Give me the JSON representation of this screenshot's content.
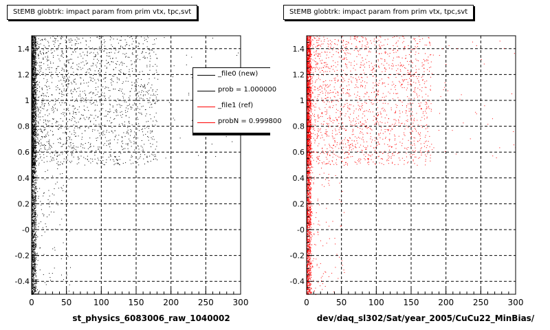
{
  "chart_data": [
    {
      "type": "scatter",
      "title": "StEMB globtrk: impact param from prim vtx, tpc,svt",
      "xlabel": "st_physics_6083006_raw_1040002",
      "ylabel": "",
      "xlim": [
        0,
        300
      ],
      "ylim": [
        -0.5,
        1.5
      ],
      "xticks": [
        "0",
        "50",
        "100",
        "150",
        "200",
        "250",
        "300"
      ],
      "yticks": [
        "-0.4",
        "-0.2",
        "-0",
        "0.2",
        "0.4",
        "0.6",
        "0.8",
        "1",
        "1.2",
        "1.4"
      ],
      "grid": true,
      "color": "#000000",
      "distribution": {
        "dense_band_x": [
          0,
          6
        ],
        "sparse_cluster_x": [
          0,
          180
        ],
        "sparse_cluster_y": [
          0.5,
          1.5
        ]
      }
    },
    {
      "type": "scatter",
      "title": "StEMB globtrk: impact param from prim vtx, tpc,svt",
      "xlabel": "dev/daq_sl302/Sat/year_2005/CuCu22_MinBias/",
      "ylabel": "",
      "xlim": [
        0,
        300
      ],
      "ylim": [
        -0.5,
        1.5
      ],
      "xticks": [
        "0",
        "50",
        "100",
        "150",
        "200",
        "250",
        "300"
      ],
      "yticks": [
        "-0.4",
        "-0.2",
        "-0",
        "0.2",
        "0.4",
        "0.6",
        "0.8",
        "1",
        "1.2",
        "1.4"
      ],
      "grid": true,
      "color": "#ff0000",
      "distribution": {
        "dense_band_x": [
          0,
          6
        ],
        "sparse_cluster_x": [
          0,
          180
        ],
        "sparse_cluster_y": [
          0.5,
          1.5
        ]
      }
    }
  ],
  "legend": {
    "placement": "top-right",
    "entries": [
      {
        "label": "_file0 (new)",
        "color": "#000000"
      },
      {
        "label": "prob = 1.000000",
        "color": "#000000"
      },
      {
        "label": "_file1 (ref)",
        "color": "#ff0000"
      },
      {
        "label": "probN = 0.999800",
        "color": "#ff0000"
      }
    ]
  }
}
